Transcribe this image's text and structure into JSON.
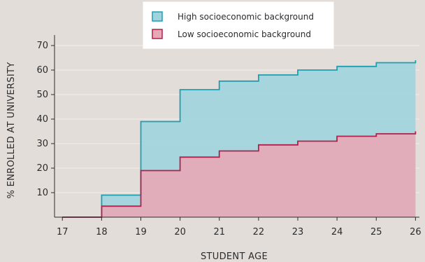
{
  "chart_data": {
    "type": "area",
    "step": true,
    "xlabel": "STUDENT AGE",
    "ylabel": "% ENROLLED AT UNIVERSITY",
    "x_ticks": [
      "17",
      "18",
      "19",
      "20",
      "21",
      "22",
      "23",
      "24",
      "25",
      "26"
    ],
    "y_ticks": [
      "10",
      "20",
      "30",
      "40",
      "50",
      "60",
      "70"
    ],
    "xlim": [
      16.8,
      26.1
    ],
    "ylim": [
      0,
      72
    ],
    "grid": true,
    "legend_position": "top-center",
    "series": [
      {
        "name": "High socioeconomic background",
        "color": "#1e9fb0",
        "fill": "#9fd4de",
        "x": [
          17,
          18,
          19,
          20,
          21,
          22,
          23,
          24,
          25,
          26
        ],
        "values": [
          0,
          9,
          39,
          52,
          55.5,
          58,
          60,
          61.5,
          63,
          64
        ]
      },
      {
        "name": "Low socioeconomic background",
        "color": "#b0214b",
        "fill": "#e8a9b6",
        "x": [
          17,
          18,
          19,
          20,
          21,
          22,
          23,
          24,
          25,
          26
        ],
        "values": [
          0,
          4.5,
          19,
          24.5,
          27,
          29.5,
          31,
          33,
          34,
          35
        ]
      }
    ]
  }
}
